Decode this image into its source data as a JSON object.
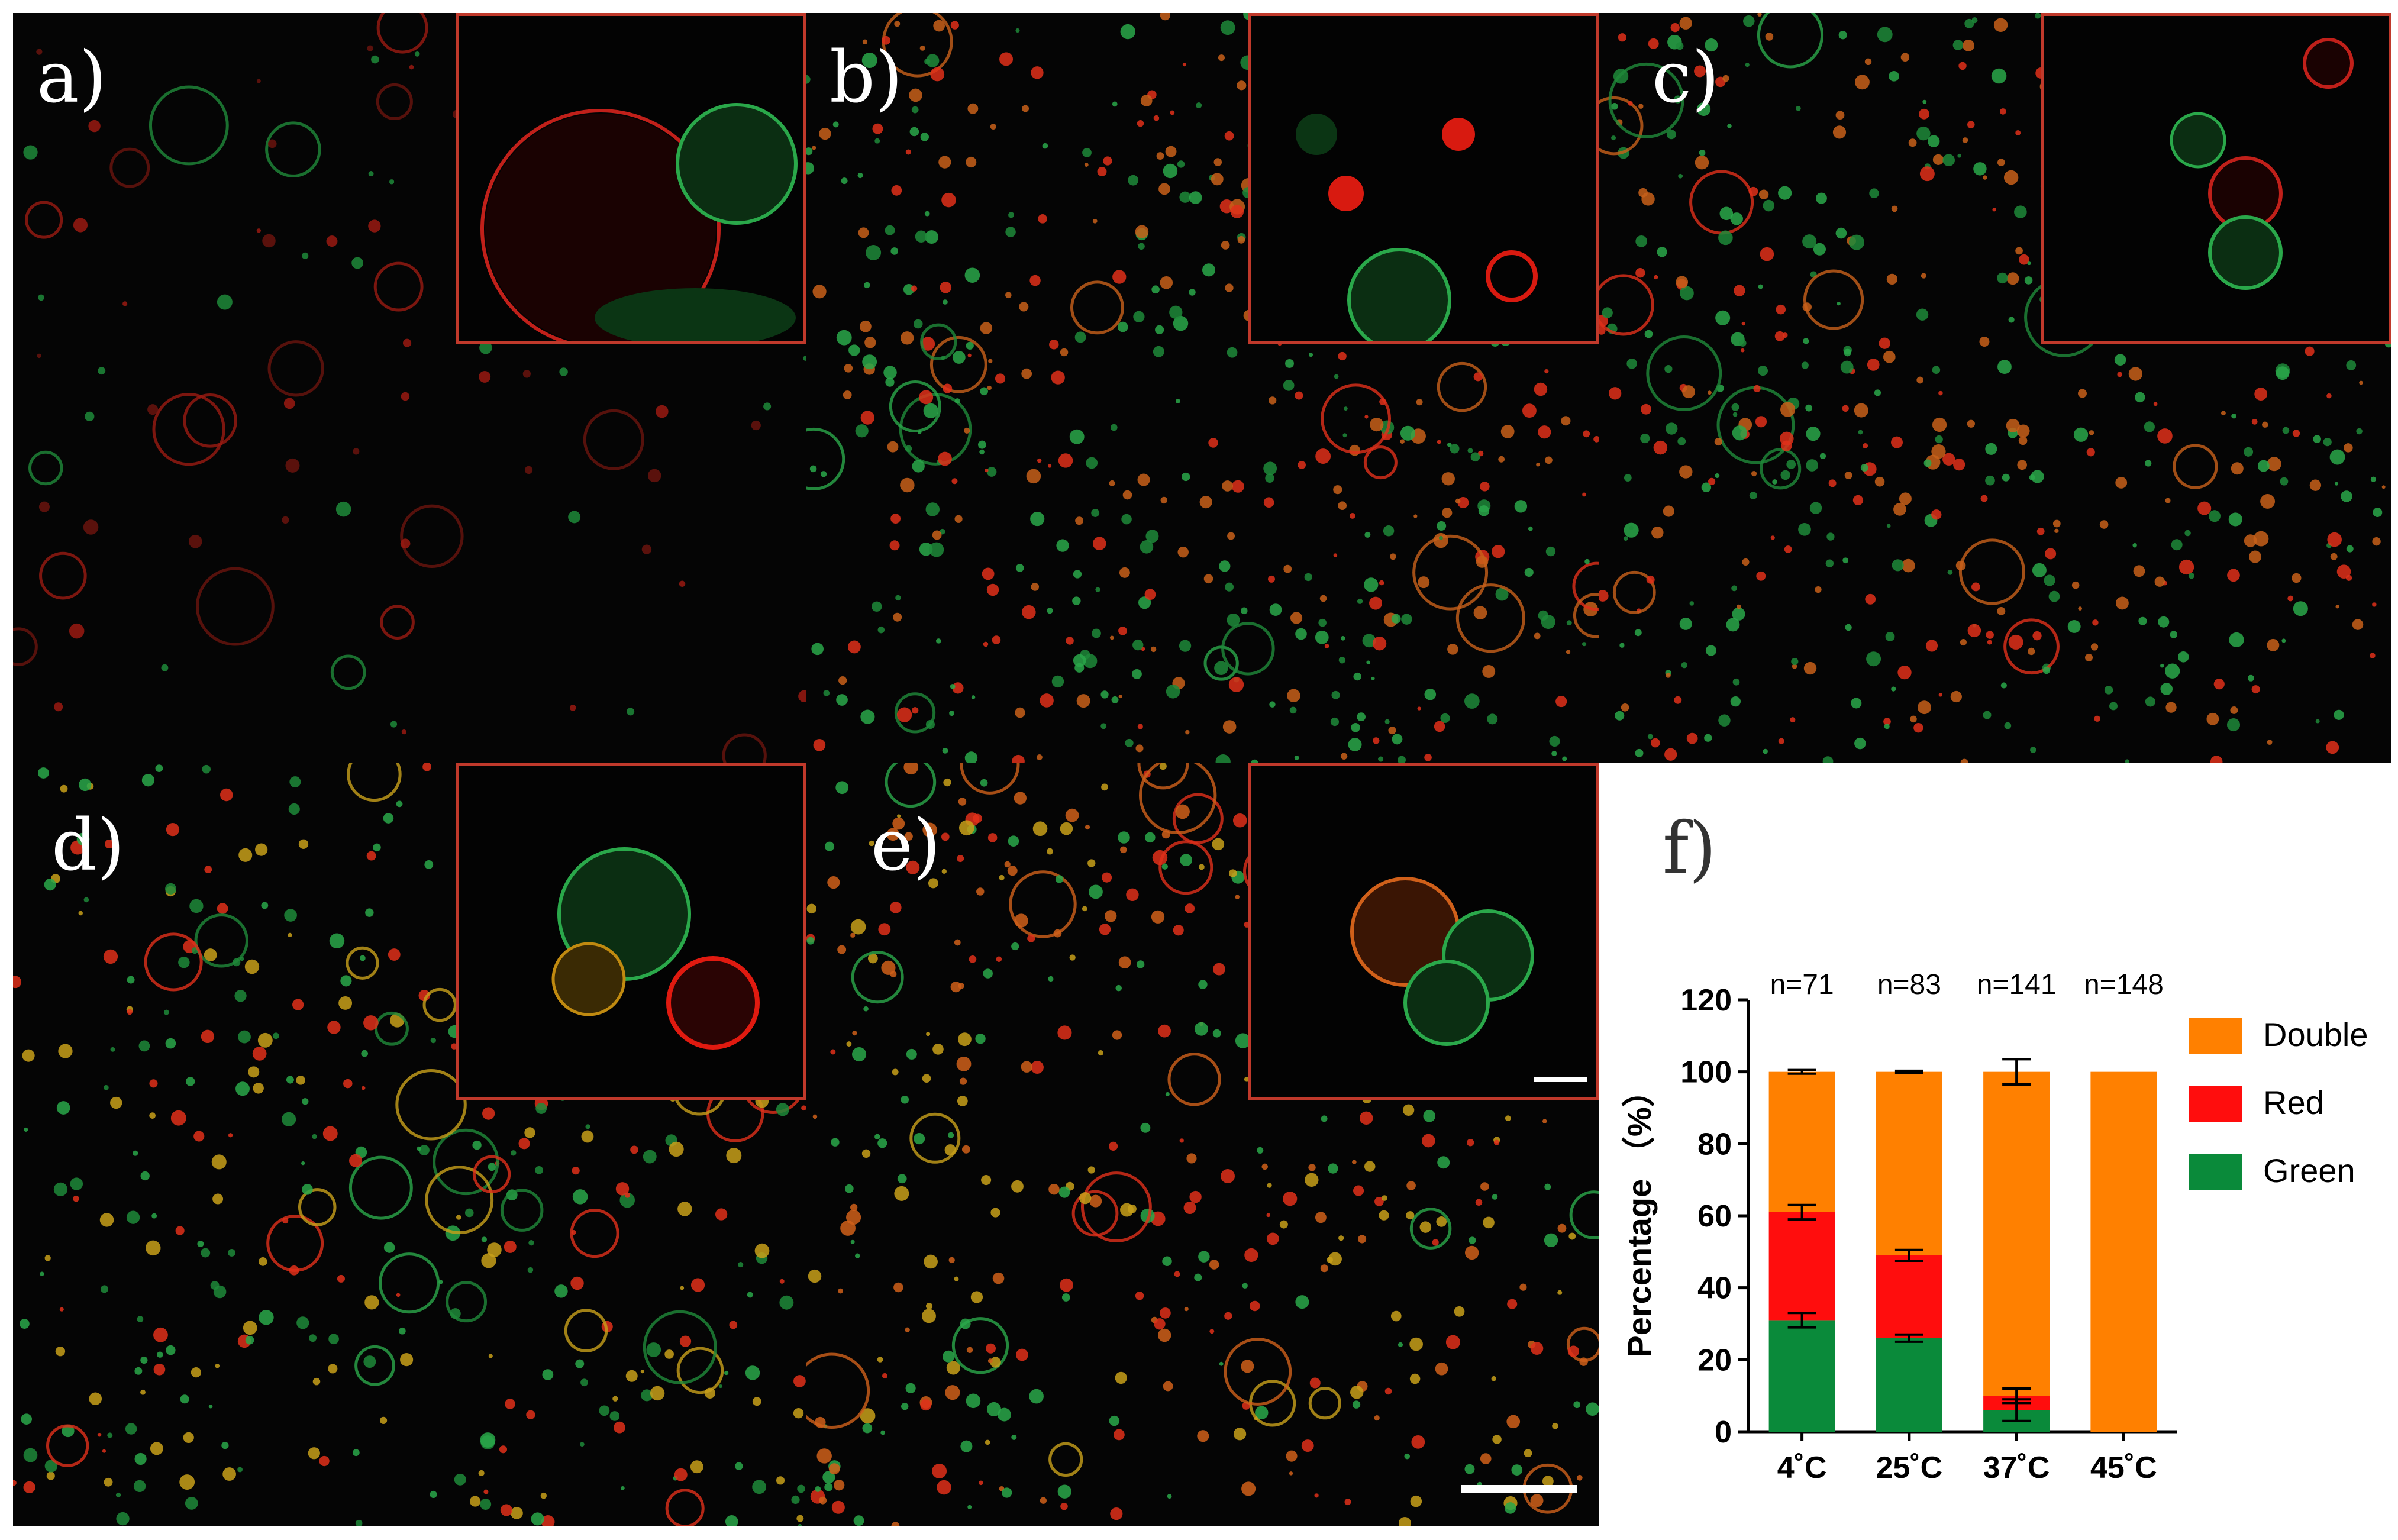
{
  "panels": {
    "a": {
      "label": "a)"
    },
    "b": {
      "label": "b)"
    },
    "c": {
      "label": "c)"
    },
    "d": {
      "label": "d)"
    },
    "e": {
      "label": "e)"
    },
    "f": {
      "label": "f)"
    }
  },
  "colors": {
    "double": "#ff8000",
    "red": "#ff0d0d",
    "green": "#0a8a3a",
    "inset_border": "#c0392b"
  },
  "chart_data": {
    "type": "bar",
    "stacked": true,
    "categories": [
      "4˚C",
      "25˚C",
      "37˚C",
      "45˚C"
    ],
    "annotations": [
      "n=71",
      "n=83",
      "n=141",
      "n=148"
    ],
    "ylabel": "Percentage （%）",
    "ylim": [
      0,
      120
    ],
    "yticks": [
      0,
      20,
      40,
      60,
      80,
      100,
      120
    ],
    "legend_position": "right",
    "series": [
      {
        "name": "Green",
        "values": [
          31,
          26,
          6,
          0
        ],
        "errors": [
          2,
          1,
          3,
          0
        ]
      },
      {
        "name": "Red",
        "values": [
          30,
          23,
          4,
          0
        ],
        "errors": [
          2,
          1.5,
          2,
          0
        ]
      },
      {
        "name": "Double",
        "values": [
          39,
          51,
          90,
          100
        ],
        "errors": [
          0.5,
          0.3,
          3.5,
          0
        ]
      }
    ]
  }
}
